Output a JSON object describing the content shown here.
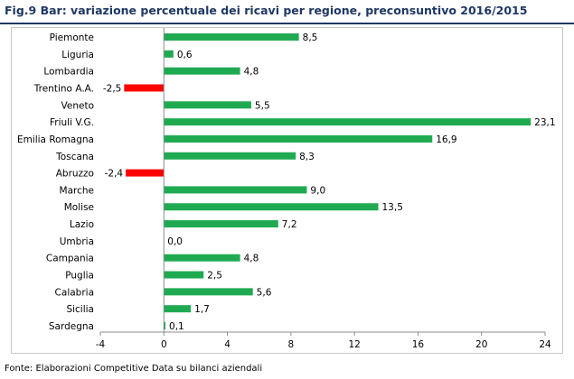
{
  "title": "Fig.9 Bar: variazione percentuale dei ricavi per regione, preconsuntivo 2016/2015",
  "source": "Fonte: Elaborazioni Competitive Data su bilanci aziendali",
  "colors": {
    "positive": "#1faa52",
    "negative": "#ff0000",
    "title": "#1f3864"
  },
  "chart_data": {
    "type": "bar",
    "orientation": "horizontal",
    "categories": [
      "Piemonte",
      "Liguria",
      "Lombardia",
      "Trentino A.A.",
      "Veneto",
      "Friuli V.G.",
      "Emilia Romagna",
      "Toscana",
      "Abruzzo",
      "Marche",
      "Molise",
      "Lazio",
      "Umbria",
      "Campania",
      "Puglia",
      "Calabria",
      "Sicilia",
      "Sardegna"
    ],
    "values": [
      8.5,
      0.6,
      4.8,
      -2.5,
      5.5,
      23.1,
      16.9,
      8.3,
      -2.4,
      9.0,
      13.5,
      7.2,
      0.0,
      4.8,
      2.5,
      5.6,
      1.7,
      0.1
    ],
    "value_labels": [
      "8,5",
      "0,6",
      "4,8",
      "-2,5",
      "5,5",
      "23,1",
      "16,9",
      "8,3",
      "-2,4",
      "9,0",
      "13,5",
      "7,2",
      "0,0",
      "4,8",
      "2,5",
      "5,6",
      "1,7",
      "0,1"
    ],
    "xlim": [
      -4,
      24
    ],
    "xticks": [
      -4,
      0,
      4,
      8,
      12,
      16,
      20,
      24
    ],
    "grid": false,
    "legend": "none"
  }
}
